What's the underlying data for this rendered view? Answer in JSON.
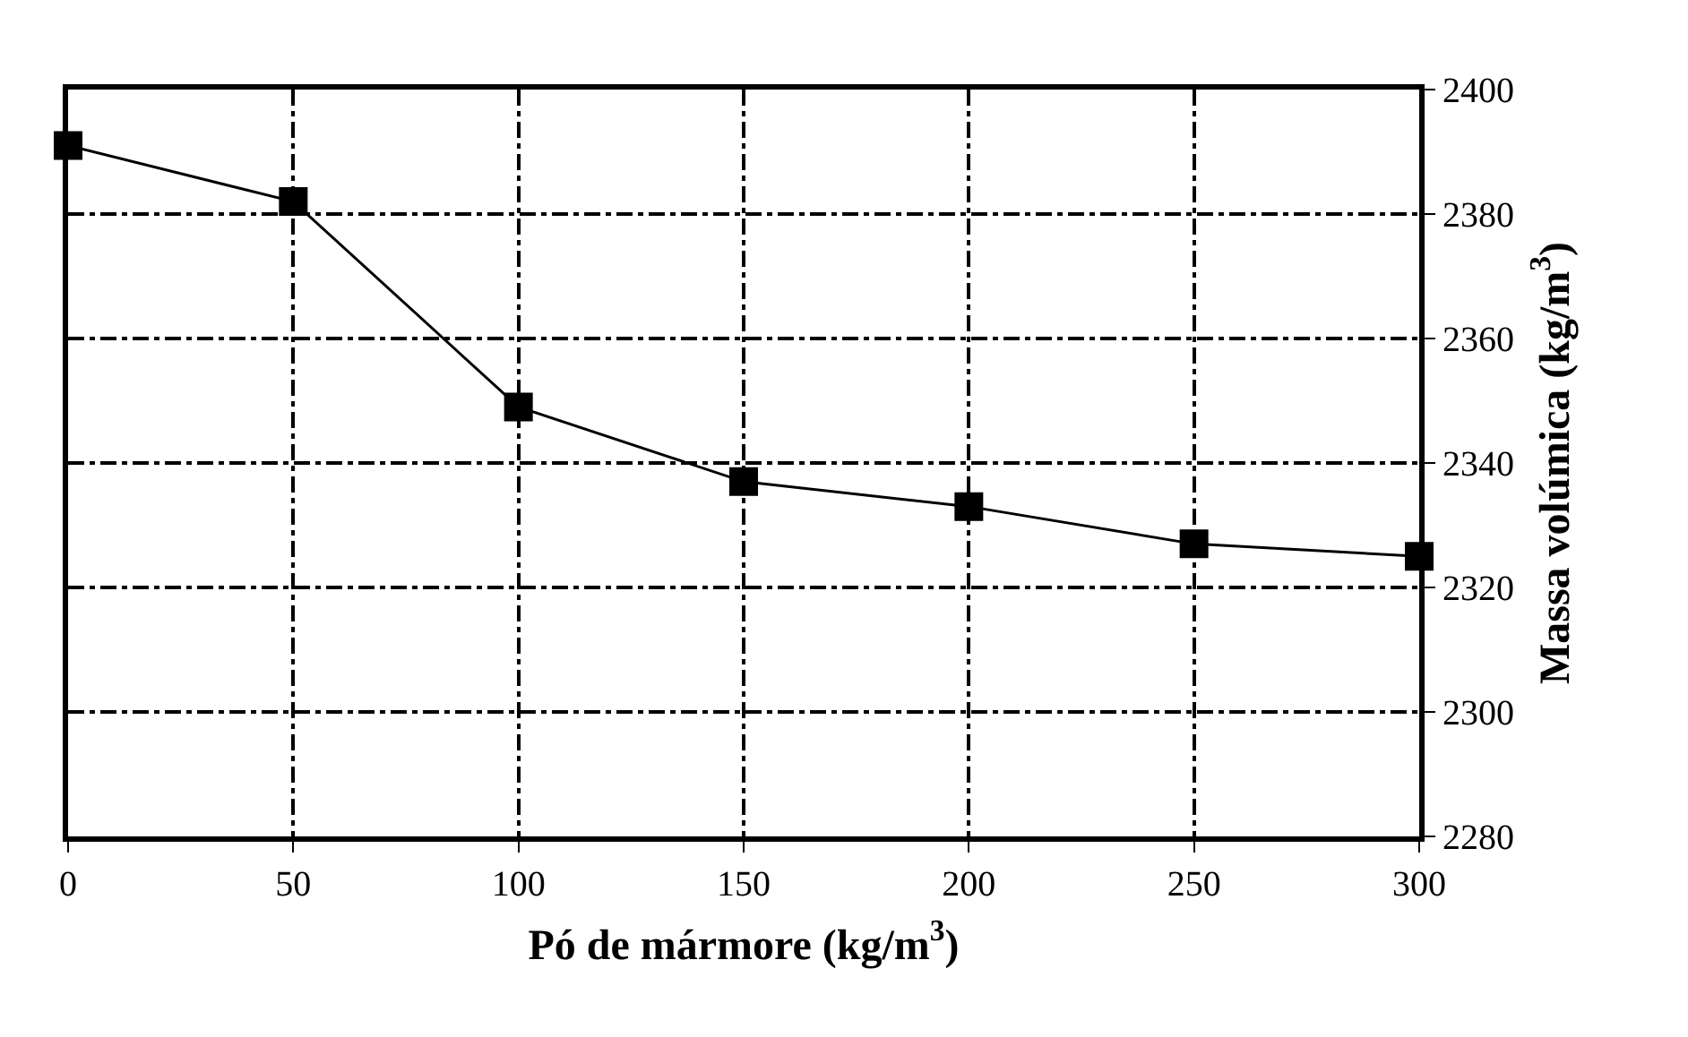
{
  "chart_data": {
    "type": "line",
    "x": [
      0,
      50,
      100,
      150,
      200,
      250,
      300
    ],
    "series": [
      {
        "color": "#000000",
        "values": [
          2391,
          2382,
          2349,
          2337,
          2333,
          2327,
          2325
        ]
      }
    ],
    "xlabel": "Pó de mármore (kg/m$^{3}$)",
    "ylabel": "Massa volúmica (kg/m$^{3}$)",
    "xlim": [
      0,
      300
    ],
    "xticks": [
      0,
      50,
      100,
      150,
      200,
      250,
      300
    ],
    "ylim": [
      2280,
      2400
    ],
    "yticks": [
      2280,
      2300,
      2320,
      2340,
      2360,
      2380,
      2400
    ],
    "grid": true,
    "marker": "square",
    "line_style": "solid"
  }
}
